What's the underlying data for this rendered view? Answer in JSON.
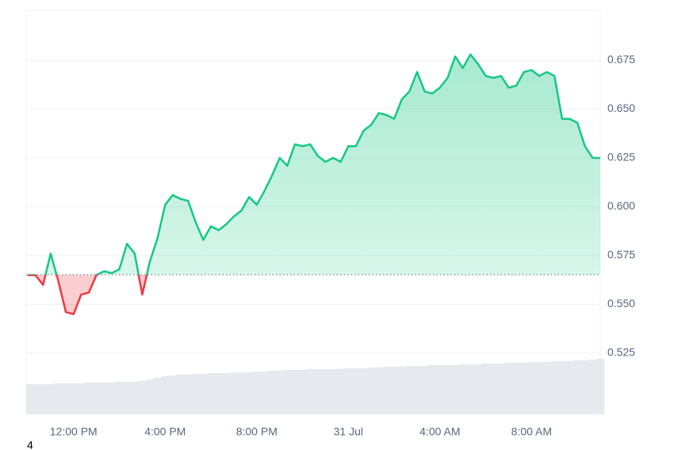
{
  "chart_data": {
    "type": "line",
    "categories": [
      null,
      null,
      null,
      null,
      null,
      null,
      "12:00 PM",
      null,
      null,
      null,
      null,
      null,
      null,
      null,
      null,
      null,
      null,
      null,
      "4:00 PM",
      null,
      null,
      null,
      null,
      null,
      null,
      null,
      null,
      null,
      null,
      null,
      "8:00 PM",
      null,
      null,
      null,
      null,
      null,
      null,
      null,
      null,
      null,
      null,
      null,
      "31 Jul",
      null,
      null,
      null,
      null,
      null,
      null,
      null,
      null,
      null,
      null,
      null,
      "4:00 AM",
      null,
      null,
      null,
      null,
      null,
      null,
      null,
      null,
      null,
      null,
      null,
      "8:00 AM",
      null,
      null,
      null,
      null,
      null,
      null,
      null,
      null,
      null
    ],
    "values": [
      0.565,
      0.565,
      0.56,
      0.576,
      0.562,
      0.546,
      0.545,
      0.555,
      0.556,
      0.565,
      0.567,
      0.566,
      0.568,
      0.581,
      0.576,
      0.555,
      0.572,
      0.584,
      0.601,
      0.606,
      0.604,
      0.603,
      0.592,
      0.583,
      0.59,
      0.588,
      0.591,
      0.595,
      0.598,
      0.605,
      0.601,
      0.608,
      0.616,
      0.625,
      0.621,
      0.632,
      0.631,
      0.632,
      0.626,
      0.623,
      0.625,
      0.623,
      0.631,
      0.631,
      0.639,
      0.642,
      0.648,
      0.647,
      0.645,
      0.655,
      0.659,
      0.669,
      0.659,
      0.658,
      0.661,
      0.666,
      0.677,
      0.671,
      0.678,
      0.673,
      0.667,
      0.666,
      0.667,
      0.661,
      0.662,
      0.669,
      0.67,
      0.667,
      0.669,
      0.667,
      0.645,
      0.645,
      0.643,
      0.631,
      0.625,
      0.625
    ],
    "volume": [
      38,
      38,
      38,
      38,
      39,
      39,
      39,
      39,
      40,
      40,
      40,
      40,
      41,
      41,
      41,
      42,
      44,
      46,
      48,
      49,
      50,
      50,
      51,
      51,
      52,
      52,
      52,
      53,
      53,
      53,
      54,
      54,
      55,
      55,
      56,
      56,
      56,
      57,
      57,
      57,
      57,
      57,
      58,
      58,
      58,
      59,
      59,
      60,
      60,
      60,
      61,
      61,
      61,
      62,
      62,
      62,
      62,
      63,
      63,
      63,
      64,
      64,
      64,
      65,
      65,
      65,
      66,
      66,
      66,
      67,
      67,
      67,
      68,
      68,
      69,
      70
    ],
    "baseline": 0.5652,
    "up_color": "#16c784",
    "down_color": "#ea3943",
    "volume_color": "#e6eaef",
    "ylim": [
      0.4937,
      0.7006
    ],
    "yticks": [
      0.525,
      {
        "value": 0.55,
        "label": "0.550"
      },
      0.575,
      {
        "value": 0.6,
        "label": "0.600"
      },
      0.625,
      {
        "value": 0.65,
        "label": "0.650"
      },
      0.675
    ],
    "grid": true,
    "footnote": "4"
  }
}
